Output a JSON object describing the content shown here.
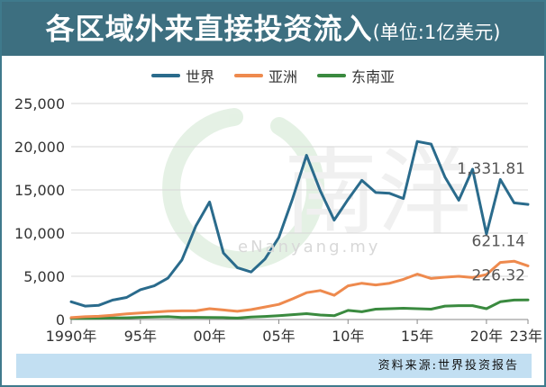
{
  "header": {
    "title": "各区域外来直接投资流入",
    "subtitle": "(单位:1亿美元)"
  },
  "watermark": {
    "logo_text": "e南洋",
    "text": "eNanyang.my"
  },
  "source": "资料来源:世界投资报告",
  "colors": {
    "header_bg": "#3d6f80",
    "world": "#2a6b8c",
    "asia": "#ee8a4e",
    "sea": "#3a8a3f",
    "source_bg": "#c2dff2"
  },
  "chart_data": {
    "type": "line",
    "x": [
      1990,
      1991,
      1992,
      1993,
      1994,
      1995,
      1996,
      1997,
      1998,
      1999,
      2000,
      2001,
      2002,
      2003,
      2004,
      2005,
      2006,
      2007,
      2008,
      2009,
      2010,
      2011,
      2012,
      2013,
      2014,
      2015,
      2016,
      2017,
      2018,
      2019,
      2020,
      2021,
      2022,
      2023
    ],
    "x_tick_values": [
      1990,
      1995,
      2000,
      2005,
      2010,
      2015,
      2020,
      2023
    ],
    "x_tick_labels": [
      "1990年",
      "95年",
      "00年",
      "05年",
      "10年",
      "15年",
      "20年",
      "23年"
    ],
    "y_ticks": [
      0,
      5000,
      10000,
      15000,
      20000,
      25000
    ],
    "y_tick_labels": [
      "0",
      "5,000",
      "10,000",
      "15,000",
      "20,000",
      "25,000"
    ],
    "ylim": [
      0,
      25000
    ],
    "grid": "horizontal",
    "legend_position": "top",
    "series": [
      {
        "name": "世界",
        "color": "#2a6b8c",
        "values": [
          2050,
          1550,
          1650,
          2250,
          2550,
          3450,
          3900,
          4800,
          6900,
          10800,
          13600,
          7700,
          6000,
          5500,
          7000,
          9500,
          14000,
          19000,
          14900,
          11500,
          13900,
          16100,
          14700,
          14600,
          14000,
          20600,
          20300,
          16500,
          13800,
          17400,
          9900,
          16200,
          13500,
          13318.1
        ]
      },
      {
        "name": "亚洲",
        "color": "#ee8a4e",
        "values": [
          220,
          320,
          380,
          500,
          650,
          760,
          850,
          970,
          1000,
          1000,
          1250,
          1100,
          950,
          1150,
          1450,
          1750,
          2400,
          3100,
          3350,
          2800,
          3900,
          4200,
          4000,
          4200,
          4650,
          5250,
          4750,
          4900,
          5000,
          4850,
          5200,
          6600,
          6750,
          6211.4
        ]
      },
      {
        "name": "东南亚",
        "color": "#3a8a3f",
        "values": [
          120,
          130,
          150,
          180,
          200,
          250,
          290,
          320,
          230,
          250,
          240,
          220,
          170,
          280,
          350,
          450,
          560,
          680,
          520,
          440,
          1050,
          900,
          1200,
          1250,
          1300,
          1250,
          1200,
          1550,
          1600,
          1600,
          1250,
          2050,
          2250,
          2263.2
        ]
      }
    ],
    "annotations": [
      {
        "series": "世界",
        "label": "1,331.81",
        "x": 2023,
        "y": 13318.1
      },
      {
        "series": "亚洲",
        "label": "621.14",
        "x": 2023,
        "y": 6211.4
      },
      {
        "series": "东南亚",
        "label": "226.32",
        "x": 2023,
        "y": 2263.2
      }
    ]
  }
}
